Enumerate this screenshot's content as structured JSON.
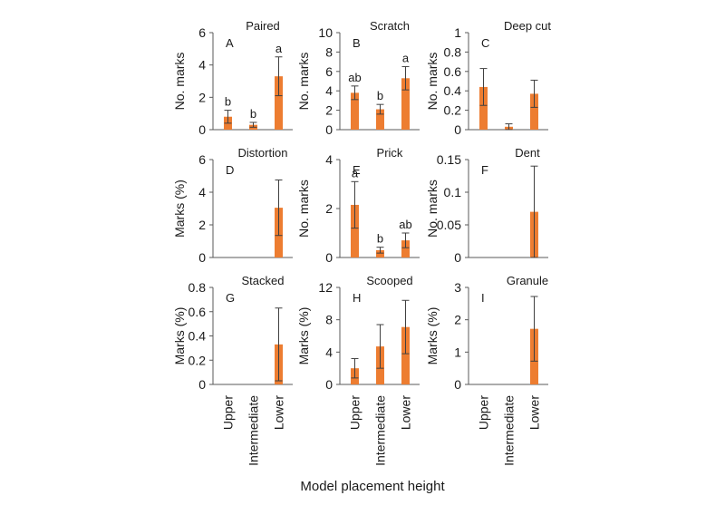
{
  "chart_data": {
    "type": "bar",
    "xlabel": "Model placement height",
    "categories": [
      "Upper",
      "Intermediate",
      "Lower"
    ],
    "bar_color": "#ED7D31",
    "panels": [
      {
        "letter": "A",
        "title": "Paired",
        "ylabel": "No. marks",
        "ylim": [
          0,
          6
        ],
        "yticks": [
          "0",
          "2",
          "4",
          "6"
        ],
        "values": [
          0.8,
          0.3,
          3.3
        ],
        "errors": [
          0.4,
          0.15,
          1.2
        ],
        "sig": [
          "b",
          "b",
          "a"
        ]
      },
      {
        "letter": "B",
        "title": "Scratch",
        "ylabel": "No. marks",
        "ylim": [
          0,
          10
        ],
        "yticks": [
          "0",
          "2",
          "4",
          "6",
          "8",
          "10"
        ],
        "values": [
          3.8,
          2.1,
          5.3
        ],
        "errors": [
          0.7,
          0.5,
          1.2
        ],
        "sig": [
          "ab",
          "b",
          "a"
        ]
      },
      {
        "letter": "C",
        "title": "Deep cut",
        "ylabel": "No. marks",
        "ylim": [
          0,
          1
        ],
        "yticks": [
          "0",
          "0.2",
          "0.4",
          "0.6",
          "0.8",
          "1"
        ],
        "values": [
          0.44,
          0.03,
          0.37
        ],
        "errors": [
          0.19,
          0.03,
          0.14
        ],
        "sig": [
          "",
          "",
          ""
        ]
      },
      {
        "letter": "D",
        "title": "Distortion",
        "ylabel": "Marks (%)",
        "ylim": [
          0,
          6
        ],
        "yticks": [
          "0",
          "2",
          "4",
          "6"
        ],
        "values": [
          0,
          0,
          3.05
        ],
        "errors": [
          0,
          0,
          1.7
        ],
        "sig": [
          "",
          "",
          ""
        ]
      },
      {
        "letter": "E",
        "title": "Prick",
        "ylabel": "No. marks",
        "ylim": [
          0,
          4
        ],
        "yticks": [
          "0",
          "2",
          "4"
        ],
        "values": [
          2.15,
          0.3,
          0.7
        ],
        "errors": [
          0.95,
          0.12,
          0.3
        ],
        "sig": [
          "a",
          "b",
          "ab"
        ]
      },
      {
        "letter": "F",
        "title": "Dent",
        "ylabel": "No. marks",
        "ylim": [
          0,
          0.15
        ],
        "yticks": [
          "0",
          "0.05",
          "0.1",
          "0.15"
        ],
        "values": [
          0,
          0,
          0.07
        ],
        "errors": [
          0,
          0,
          0.07
        ],
        "sig": [
          "",
          "",
          ""
        ]
      },
      {
        "letter": "G",
        "title": "Stacked",
        "ylabel": "Marks (%)",
        "ylim": [
          0,
          0.8
        ],
        "yticks": [
          "0",
          "0.2",
          "0.4",
          "0.6",
          "0.8"
        ],
        "values": [
          0,
          0,
          0.33
        ],
        "errors": [
          0,
          0,
          0.3
        ],
        "sig": [
          "",
          "",
          ""
        ]
      },
      {
        "letter": "H",
        "title": "Scooped",
        "ylabel": "Marks (%)",
        "ylim": [
          0,
          12
        ],
        "yticks": [
          "0",
          "4",
          "8",
          "12"
        ],
        "values": [
          2.0,
          4.7,
          7.1
        ],
        "errors": [
          1.2,
          2.7,
          3.3
        ],
        "sig": [
          "",
          "",
          ""
        ]
      },
      {
        "letter": "I",
        "title": "Granule",
        "ylabel": "Marks (%)",
        "ylim": [
          0,
          3
        ],
        "yticks": [
          "0",
          "1",
          "2",
          "3"
        ],
        "values": [
          0,
          0,
          1.72
        ],
        "errors": [
          0,
          0,
          1.0
        ],
        "sig": [
          "",
          "",
          ""
        ]
      }
    ]
  }
}
